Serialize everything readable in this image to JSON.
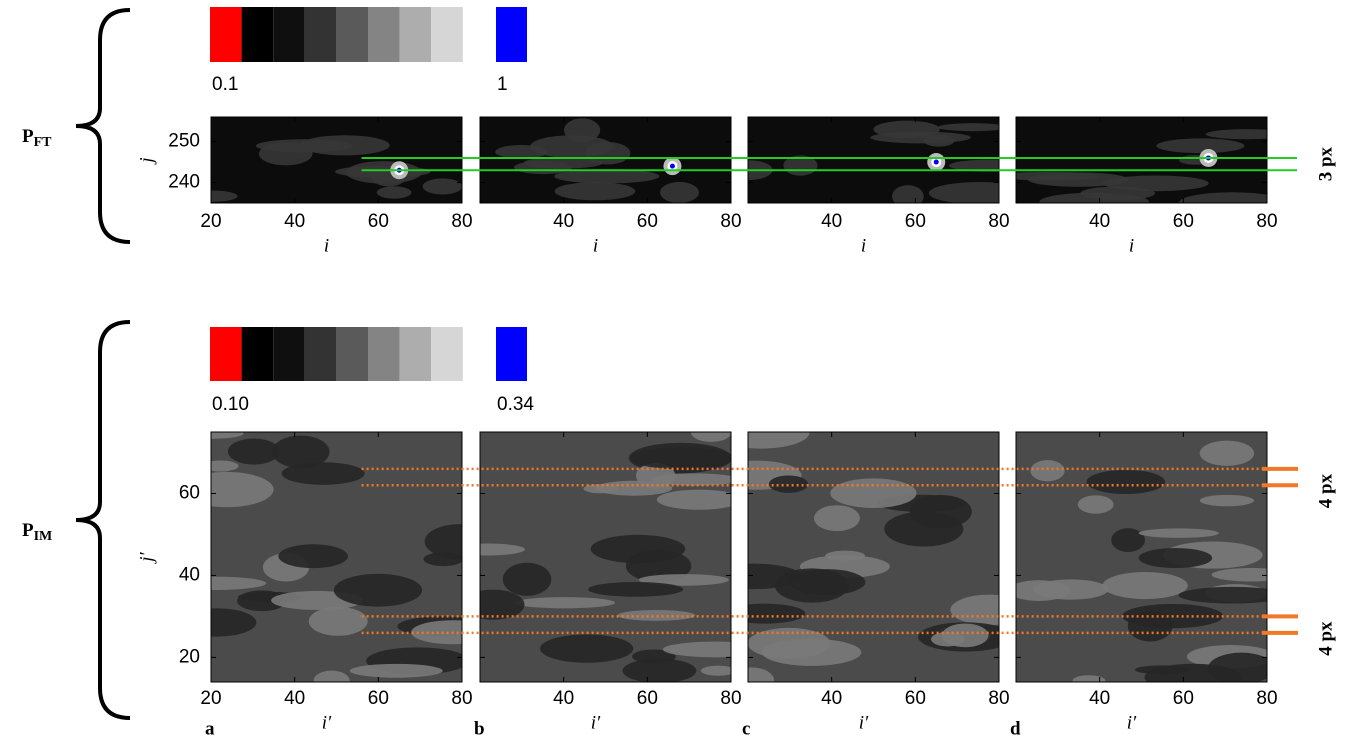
{
  "chart_data": [
    {
      "type": "heatmap",
      "label": "P",
      "label_sub": "FT",
      "xlabel": "i",
      "ylabel": "j",
      "xlim": [
        20,
        80
      ],
      "ylim": [
        235,
        256
      ],
      "xticks": [
        20,
        40,
        60,
        80
      ],
      "yticks": [
        240,
        250
      ],
      "colorbar": {
        "colors": [
          "#ff0000",
          "#000000",
          "#0f0f0f",
          "#333333",
          "#5a5a5a",
          "#848484",
          "#adadad",
          "#d6d6d6"
        ],
        "min_label": "0.1",
        "max_color": "#0000ff",
        "max_label": "1"
      },
      "panels": [
        {
          "peak": [
            65,
            243
          ]
        },
        {
          "peak": [
            66,
            244
          ]
        },
        {
          "peak": [
            65,
            245
          ]
        },
        {
          "peak": [
            66,
            246
          ]
        }
      ],
      "guides": [
        {
          "color": "#22cc22",
          "style": "solid",
          "values": [
            246,
            243
          ],
          "label": "3 px"
        }
      ]
    },
    {
      "type": "heatmap",
      "label": "P",
      "label_sub": "IM",
      "xlabel": "i′",
      "ylabel": "j′",
      "xlim": [
        20,
        80
      ],
      "ylim": [
        14,
        75
      ],
      "xticks": [
        20,
        40,
        60,
        80
      ],
      "yticks": [
        20,
        40,
        60
      ],
      "colorbar": {
        "colors": [
          "#ff0000",
          "#000000",
          "#0f0f0f",
          "#333333",
          "#5a5a5a",
          "#848484",
          "#adadad",
          "#d6d6d6"
        ],
        "min_label": "0.10",
        "max_color": "#0000ff",
        "max_label": "0.34"
      },
      "panels": [
        {
          "letter": "a"
        },
        {
          "letter": "b"
        },
        {
          "letter": "c"
        },
        {
          "letter": "d"
        }
      ],
      "guides": [
        {
          "color": "#f07828",
          "style": "dotted",
          "values": [
            66,
            62
          ],
          "label": "4 px"
        },
        {
          "color": "#f07828",
          "style": "dotted",
          "values": [
            30,
            26
          ],
          "label": "4 px"
        }
      ]
    }
  ]
}
